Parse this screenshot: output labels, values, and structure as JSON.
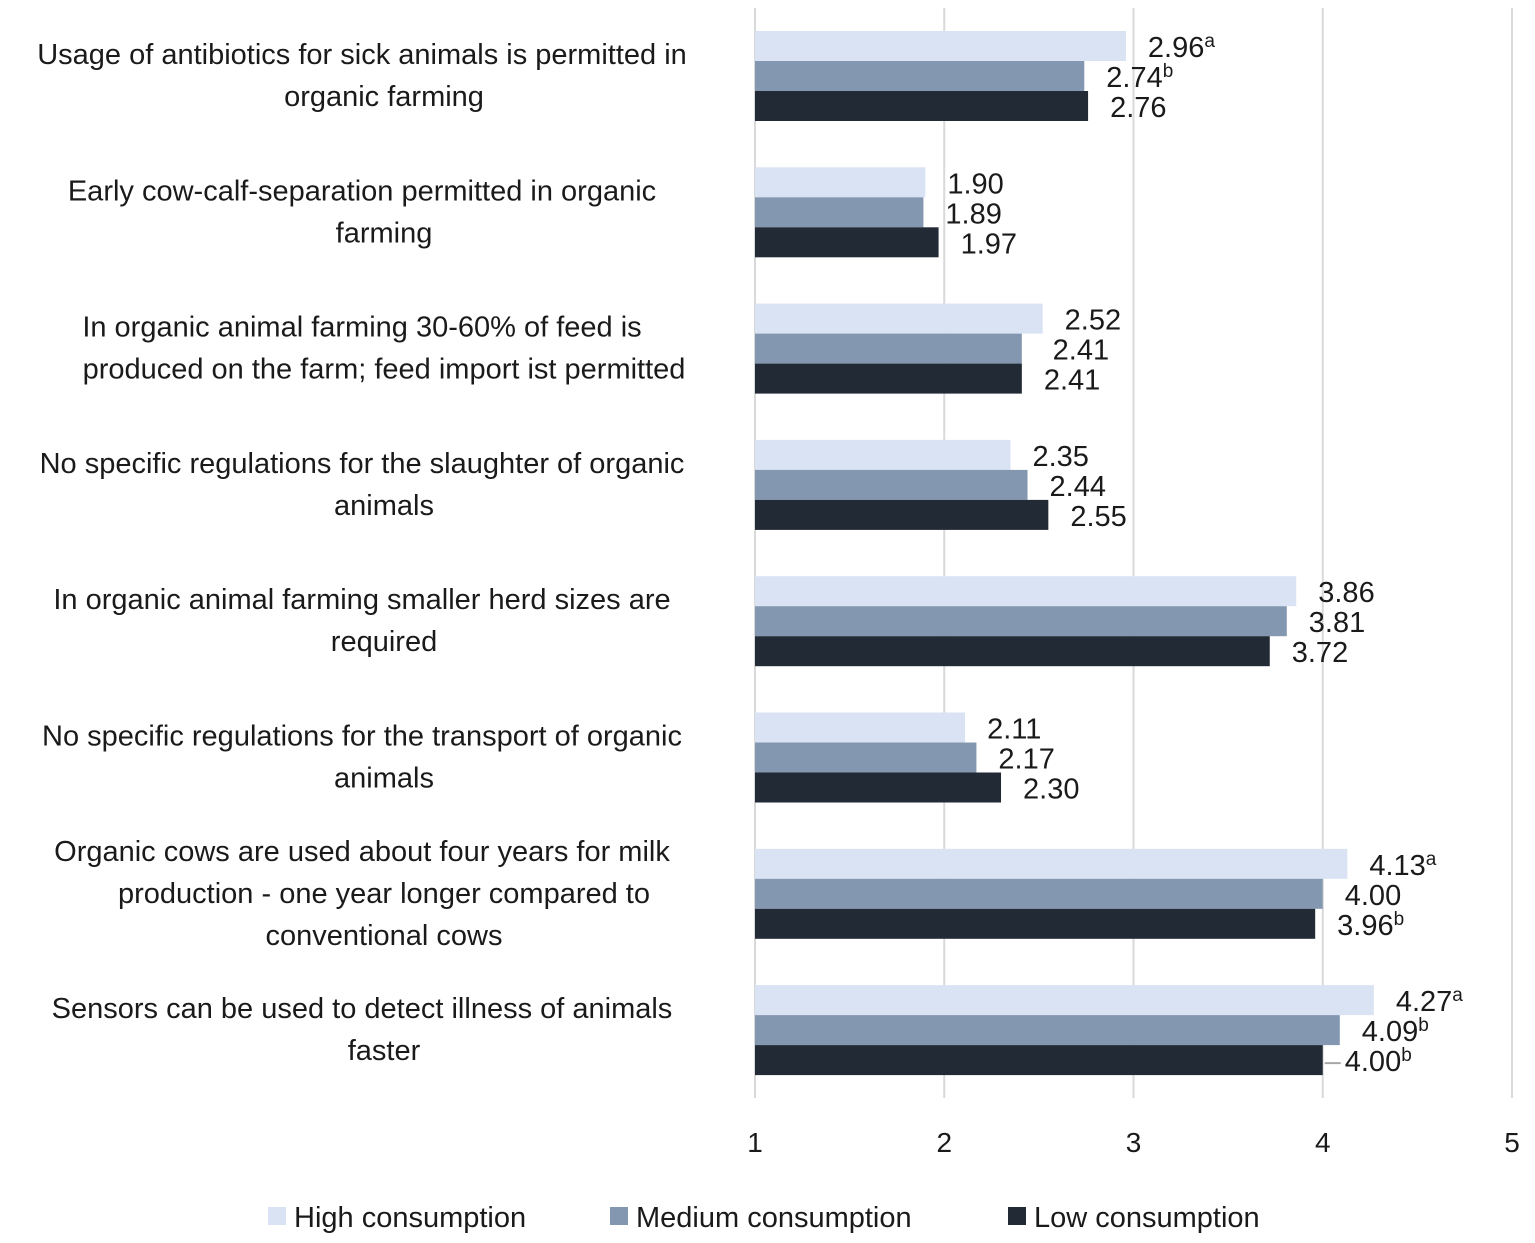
{
  "chart_data": {
    "type": "bar",
    "orientation": "horizontal",
    "title": "",
    "xlabel": "",
    "ylabel": "",
    "xlim": [
      1,
      5
    ],
    "xticks": [
      "1",
      "2",
      "3",
      "4",
      "5"
    ],
    "grid": true,
    "legend_position": "bottom",
    "categories": [
      [
        "Usage of antibiotics for sick animals is permitted in",
        "organic farming"
      ],
      [
        "Early cow-calf-separation permitted in organic",
        "farming"
      ],
      [
        "In organic animal farming 30-60% of feed is",
        "produced on the farm; feed import ist permitted"
      ],
      [
        "No specific regulations for the slaughter of organic",
        "animals"
      ],
      [
        "In organic animal farming smaller herd sizes are",
        "required"
      ],
      [
        "No specific regulations for the transport of organic",
        "animals"
      ],
      [
        "Organic cows are used about four years for milk",
        "production - one year longer compared to",
        "conventional cows"
      ],
      [
        "Sensors can be used to detect illness of animals",
        "faster"
      ]
    ],
    "series": [
      {
        "name": "High consumption",
        "color": "#dae3f3",
        "values": [
          2.96,
          1.9,
          2.52,
          2.35,
          3.86,
          2.11,
          4.13,
          4.27
        ],
        "labels": [
          "2.96",
          "1.90",
          "2.52",
          "2.35",
          "3.86",
          "2.11",
          "4.13",
          "4.27"
        ],
        "superscripts": [
          "a",
          "",
          "",
          "",
          "",
          "",
          "a",
          "a"
        ]
      },
      {
        "name": "Medium consumption",
        "color": "#8497b0",
        "values": [
          2.74,
          1.89,
          2.41,
          2.44,
          3.81,
          2.17,
          4.0,
          4.09
        ],
        "labels": [
          "2.74",
          "1.89",
          "2.41",
          "2.44",
          "3.81",
          "2.17",
          "4.00",
          "4.09"
        ],
        "superscripts": [
          "b",
          "",
          "",
          "",
          "",
          "",
          "",
          "b"
        ]
      },
      {
        "name": "Low consumption",
        "color": "#222a35",
        "values": [
          2.76,
          1.97,
          2.41,
          2.55,
          3.72,
          2.3,
          3.96,
          4.0
        ],
        "labels": [
          "2.76",
          "1.97",
          "2.41",
          "2.55",
          "3.72",
          "2.30",
          "3.96",
          "4.00"
        ],
        "superscripts": [
          "",
          "",
          "",
          "",
          "",
          "",
          "b",
          "b"
        ]
      }
    ]
  }
}
